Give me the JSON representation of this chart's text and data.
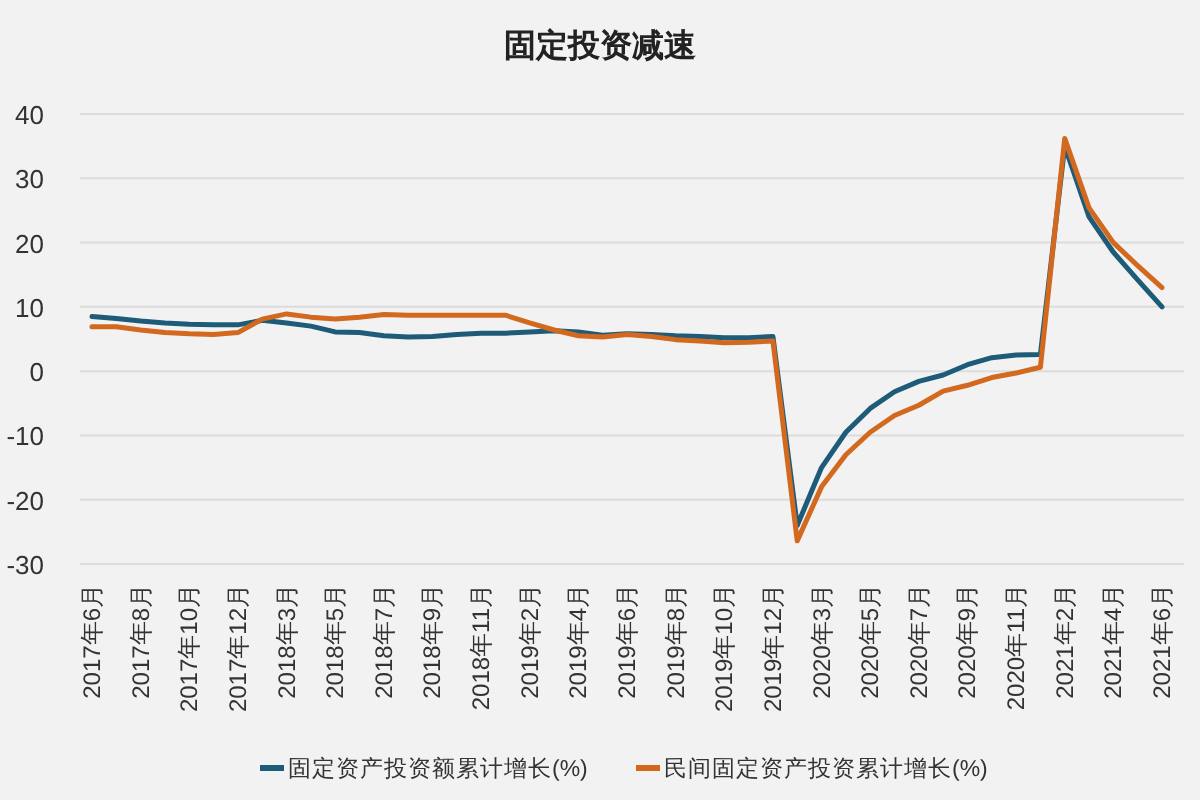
{
  "chart_data": {
    "type": "line",
    "title": "固定投资减速",
    "categories": [
      "2017年6月",
      null,
      "2017年8月",
      null,
      "2017年10月",
      null,
      "2017年12月",
      null,
      "2018年3月",
      null,
      "2018年5月",
      null,
      "2018年7月",
      null,
      "2018年9月",
      null,
      "2018年11月",
      null,
      "2019年2月",
      null,
      "2019年4月",
      null,
      "2019年6月",
      null,
      "2019年8月",
      null,
      "2019年10月",
      null,
      "2019年12月",
      null,
      "2020年3月",
      null,
      "2020年5月",
      null,
      "2020年7月",
      null,
      "2020年9月",
      null,
      "2020年11月",
      null,
      "2021年2月",
      null,
      "2021年4月",
      null,
      "2021年6月"
    ],
    "series": [
      {
        "name": "固定资产投资额累计增长(%)",
        "color": "#1d5b79",
        "values": [
          8.5,
          8.2,
          7.8,
          7.5,
          7.3,
          7.2,
          7.2,
          7.9,
          7.5,
          7.0,
          6.1,
          6.0,
          5.5,
          5.3,
          5.4,
          5.7,
          5.9,
          5.9,
          6.1,
          6.3,
          6.1,
          5.6,
          5.8,
          5.7,
          5.5,
          5.4,
          5.2,
          5.2,
          5.4,
          -24.0,
          -15.0,
          -9.5,
          -5.8,
          -3.2,
          -1.6,
          -0.6,
          1.0,
          2.1,
          2.5,
          2.6,
          35.0,
          24.0,
          18.5,
          14.2,
          10.0
        ]
      },
      {
        "name": "民间固定资产投资累计增长(%)",
        "color": "#d2691e",
        "values": [
          6.9,
          6.9,
          6.4,
          6.0,
          5.8,
          5.7,
          6.0,
          8.1,
          8.9,
          8.4,
          8.1,
          8.4,
          8.8,
          8.7,
          8.7,
          8.7,
          8.7,
          8.7,
          7.5,
          6.4,
          5.5,
          5.3,
          5.7,
          5.4,
          4.9,
          4.7,
          4.4,
          4.5,
          4.7,
          -26.4,
          -18.0,
          -13.0,
          -9.5,
          -6.9,
          -5.3,
          -3.1,
          -2.2,
          -1.0,
          -0.3,
          0.6,
          36.2,
          25.4,
          20.0,
          16.4,
          13.0
        ]
      }
    ],
    "ylim": [
      -30,
      40
    ],
    "yticks": [
      -30,
      -20,
      -10,
      0,
      10,
      20,
      30,
      40
    ],
    "grid": "y",
    "legend": "bottom",
    "marker": "none",
    "line_style": "solid"
  }
}
